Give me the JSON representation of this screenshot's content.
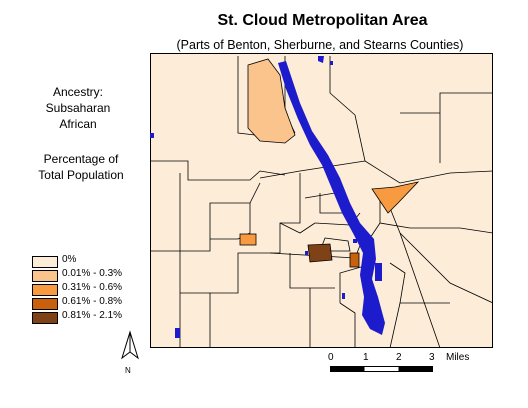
{
  "title": "St. Cloud Metropolitan Area",
  "subtitle": "(Parts of Benton, Sherburne, and Stearns Counties)",
  "theme": {
    "line1": "Ancestry:",
    "line2": "Subsaharan",
    "line3": "African"
  },
  "measure": {
    "line1": "Percentage of",
    "line2": "Total Population"
  },
  "legend": [
    {
      "label": "0%",
      "color": "#fcecd8"
    },
    {
      "label": "0.01% - 0.3%",
      "color": "#fbc48c"
    },
    {
      "label": "0.31% - 0.6%",
      "color": "#f79a40"
    },
    {
      "label": "0.61% - 0.8%",
      "color": "#c8600e"
    },
    {
      "label": "0.81% - 2.1%",
      "color": "#7e4216"
    }
  ],
  "north_arrow": {
    "label": "N",
    "icon": "north-arrow-icon"
  },
  "scale_bar": {
    "ticks": [
      "0",
      "1",
      "2",
      "3"
    ],
    "unit": "Miles"
  },
  "colors": {
    "water": "#1c1ccc",
    "base_tract": "#fcecd8",
    "boundary": "#000000"
  }
}
